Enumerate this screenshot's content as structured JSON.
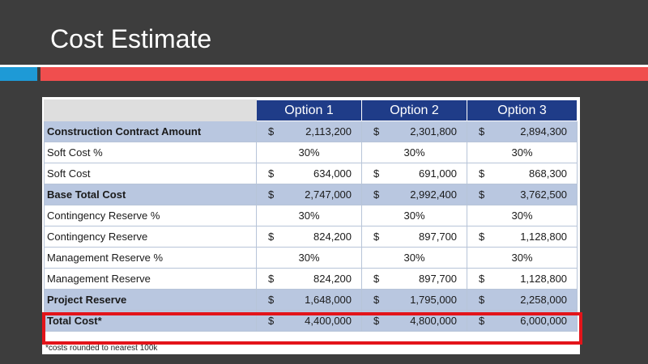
{
  "slide": {
    "title": "Cost Estimate"
  },
  "table": {
    "headers": [
      "Option 1",
      "Option 2",
      "Option 3"
    ],
    "currency": "$",
    "rows": [
      {
        "label": "Construction Contract Amount",
        "bold": true,
        "shaded": true,
        "type": "money",
        "values": [
          "2,113,200",
          "2,301,800",
          "2,894,300"
        ]
      },
      {
        "label": "Soft Cost %",
        "bold": false,
        "shaded": false,
        "type": "pct",
        "values": [
          "30%",
          "30%",
          "30%"
        ]
      },
      {
        "label": "Soft Cost",
        "bold": false,
        "shaded": false,
        "type": "money",
        "values": [
          "634,000",
          "691,000",
          "868,300"
        ]
      },
      {
        "label": "Base Total Cost",
        "bold": true,
        "shaded": true,
        "type": "money",
        "values": [
          "2,747,000",
          "2,992,400",
          "3,762,500"
        ]
      },
      {
        "label": "Contingency Reserve %",
        "bold": false,
        "shaded": false,
        "type": "pct",
        "values": [
          "30%",
          "30%",
          "30%"
        ]
      },
      {
        "label": "Contingency Reserve",
        "bold": false,
        "shaded": false,
        "type": "money",
        "values": [
          "824,200",
          "897,700",
          "1,128,800"
        ]
      },
      {
        "label": "Management Reserve %",
        "bold": false,
        "shaded": false,
        "type": "pct",
        "values": [
          "30%",
          "30%",
          "30%"
        ]
      },
      {
        "label": "Management Reserve",
        "bold": false,
        "shaded": false,
        "type": "money",
        "values": [
          "824,200",
          "897,700",
          "1,128,800"
        ]
      },
      {
        "label": "Project Reserve",
        "bold": true,
        "shaded": true,
        "type": "money",
        "values": [
          "1,648,000",
          "1,795,000",
          "2,258,000"
        ]
      },
      {
        "label": "Total Cost*",
        "bold": true,
        "shaded": true,
        "type": "money",
        "values": [
          "4,400,000",
          "4,800,000",
          "6,000,000"
        ]
      }
    ],
    "footnote": "*costs rounded to nearest 100k"
  }
}
